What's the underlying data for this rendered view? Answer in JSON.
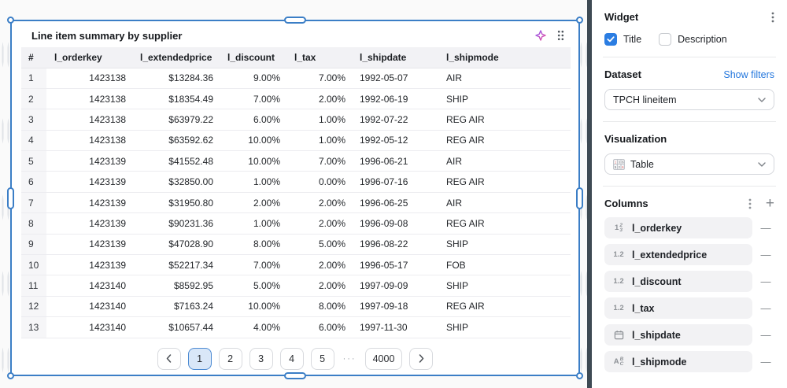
{
  "widget": {
    "title": "Line item summary by supplier",
    "table": {
      "columns": [
        "#",
        "l_orderkey",
        "l_extendedprice",
        "l_discount",
        "l_tax",
        "l_shipdate",
        "l_shipmode"
      ],
      "rows": [
        [
          "1",
          "1423138",
          "$13284.36",
          "9.00%",
          "7.00%",
          "1992-05-07",
          "AIR"
        ],
        [
          "2",
          "1423138",
          "$18354.49",
          "7.00%",
          "2.00%",
          "1992-06-19",
          "SHIP"
        ],
        [
          "3",
          "1423138",
          "$63979.22",
          "6.00%",
          "1.00%",
          "1992-07-22",
          "REG AIR"
        ],
        [
          "4",
          "1423138",
          "$63592.62",
          "10.00%",
          "1.00%",
          "1992-05-12",
          "REG AIR"
        ],
        [
          "5",
          "1423139",
          "$41552.48",
          "10.00%",
          "7.00%",
          "1996-06-21",
          "AIR"
        ],
        [
          "6",
          "1423139",
          "$32850.00",
          "1.00%",
          "0.00%",
          "1996-07-16",
          "REG AIR"
        ],
        [
          "7",
          "1423139",
          "$31950.80",
          "2.00%",
          "2.00%",
          "1996-06-25",
          "AIR"
        ],
        [
          "8",
          "1423139",
          "$90231.36",
          "1.00%",
          "2.00%",
          "1996-09-08",
          "REG AIR"
        ],
        [
          "9",
          "1423139",
          "$47028.90",
          "8.00%",
          "5.00%",
          "1996-08-22",
          "SHIP"
        ],
        [
          "10",
          "1423139",
          "$52217.34",
          "7.00%",
          "2.00%",
          "1996-05-17",
          "FOB"
        ],
        [
          "11",
          "1423140",
          "$8592.95",
          "5.00%",
          "2.00%",
          "1997-09-09",
          "SHIP"
        ],
        [
          "12",
          "1423140",
          "$7163.24",
          "10.00%",
          "8.00%",
          "1997-09-18",
          "REG AIR"
        ],
        [
          "13",
          "1423140",
          "$10657.44",
          "4.00%",
          "6.00%",
          "1997-11-30",
          "SHIP"
        ]
      ]
    },
    "pagination": {
      "pages": [
        "1",
        "2",
        "3",
        "4",
        "5"
      ],
      "active_page": "1",
      "ellipsis": "···",
      "last_page": "4000",
      "prev_icon": "chevron-left-icon",
      "next_icon": "chevron-right-icon"
    },
    "header_icons": [
      "ai-sparkle-icon",
      "drag-grip-icon"
    ]
  },
  "panel": {
    "widget_section": {
      "heading": "Widget",
      "title_label": "Title",
      "title_checked": true,
      "description_label": "Description",
      "description_checked": false,
      "menu_icon": "kebab-menu-icon"
    },
    "dataset_section": {
      "heading": "Dataset",
      "link": "Show filters",
      "selected": "TPCH lineitem",
      "chevron": "chevron-down-icon"
    },
    "visualization_section": {
      "heading": "Visualization",
      "selected": "Table",
      "viz_icon": "table-viz-icon",
      "chevron": "chevron-down-icon"
    },
    "columns_section": {
      "heading": "Columns",
      "menu_icon": "kebab-menu-icon",
      "add_icon": "plus-icon",
      "remove_icon": "minus-icon",
      "items": [
        {
          "type": "number",
          "label": "l_orderkey"
        },
        {
          "type": "decimal",
          "label": "l_extendedprice"
        },
        {
          "type": "decimal",
          "label": "l_discount"
        },
        {
          "type": "decimal",
          "label": "l_tax"
        },
        {
          "type": "date",
          "label": "l_shipdate"
        },
        {
          "type": "text",
          "label": "l_shipmode"
        }
      ]
    }
  },
  "colors": {
    "selection_blue": "#3b7ec6",
    "checkbox_blue": "#2b7de2",
    "link_blue": "#2477dd",
    "active_page_bg": "#d9e7f8",
    "separator_dark": "#3e4a54",
    "sparkle_gradient_start": "#8b5cf6",
    "sparkle_gradient_end": "#ec4899"
  }
}
